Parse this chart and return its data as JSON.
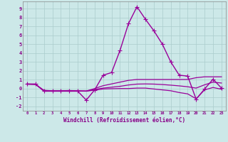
{
  "background_color": "#cce8e8",
  "grid_color": "#aacccc",
  "line_color": "#990099",
  "xlabel": "Windchill (Refroidissement éolien,°C)",
  "xlim": [
    -0.5,
    23.5
  ],
  "ylim": [
    -2.5,
    9.8
  ],
  "yticks": [
    -2,
    -1,
    0,
    1,
    2,
    3,
    4,
    5,
    6,
    7,
    8,
    9
  ],
  "xticks": [
    0,
    1,
    2,
    3,
    4,
    5,
    6,
    7,
    8,
    9,
    10,
    11,
    12,
    13,
    14,
    15,
    16,
    17,
    18,
    19,
    20,
    21,
    22,
    23
  ],
  "series": [
    {
      "x": [
        0,
        1,
        2,
        3,
        4,
        5,
        6,
        7,
        8,
        9,
        10,
        11,
        12,
        13,
        14,
        15,
        16,
        17,
        18,
        19,
        20,
        21,
        22,
        23
      ],
      "y": [
        0.5,
        0.5,
        -0.3,
        -0.3,
        -0.3,
        -0.3,
        -0.3,
        -1.3,
        -0.15,
        1.5,
        1.8,
        4.3,
        7.3,
        9.2,
        7.8,
        6.5,
        5.0,
        3.0,
        1.5,
        1.4,
        -1.2,
        -0.05,
        1.05,
        0.05
      ],
      "marker": "+",
      "linewidth": 1.0,
      "markersize": 5
    },
    {
      "x": [
        0,
        1,
        2,
        3,
        4,
        5,
        6,
        7,
        8,
        9,
        10,
        11,
        12,
        13,
        14,
        15,
        16,
        17,
        18,
        19,
        20,
        21,
        22,
        23
      ],
      "y": [
        0.5,
        0.45,
        -0.2,
        -0.25,
        -0.25,
        -0.22,
        -0.25,
        -0.28,
        -0.1,
        0.05,
        0.15,
        0.25,
        0.4,
        0.5,
        0.52,
        0.5,
        0.45,
        0.38,
        0.3,
        0.2,
        0.05,
        0.42,
        0.72,
        0.62
      ],
      "marker": null,
      "linewidth": 0.9
    },
    {
      "x": [
        0,
        1,
        2,
        3,
        4,
        5,
        6,
        7,
        8,
        9,
        10,
        11,
        12,
        13,
        14,
        15,
        16,
        17,
        18,
        19,
        20,
        21,
        22,
        23
      ],
      "y": [
        0.5,
        0.48,
        -0.22,
        -0.28,
        -0.28,
        -0.25,
        -0.28,
        -0.3,
        -0.18,
        -0.05,
        -0.02,
        0.0,
        0.0,
        0.05,
        0.05,
        -0.05,
        -0.15,
        -0.25,
        -0.45,
        -0.6,
        -1.15,
        -0.15,
        0.12,
        -0.08
      ],
      "marker": null,
      "linewidth": 0.9
    },
    {
      "x": [
        0,
        1,
        2,
        3,
        4,
        5,
        6,
        7,
        8,
        9,
        10,
        11,
        12,
        13,
        14,
        15,
        16,
        17,
        18,
        19,
        20,
        21,
        22,
        23
      ],
      "y": [
        0.5,
        0.5,
        -0.28,
        -0.28,
        -0.28,
        -0.28,
        -0.28,
        -0.28,
        0.0,
        0.32,
        0.52,
        0.72,
        0.92,
        1.02,
        1.02,
        1.02,
        1.02,
        1.02,
        1.02,
        1.02,
        1.22,
        1.32,
        1.32,
        1.32
      ],
      "marker": null,
      "linewidth": 0.9
    }
  ]
}
